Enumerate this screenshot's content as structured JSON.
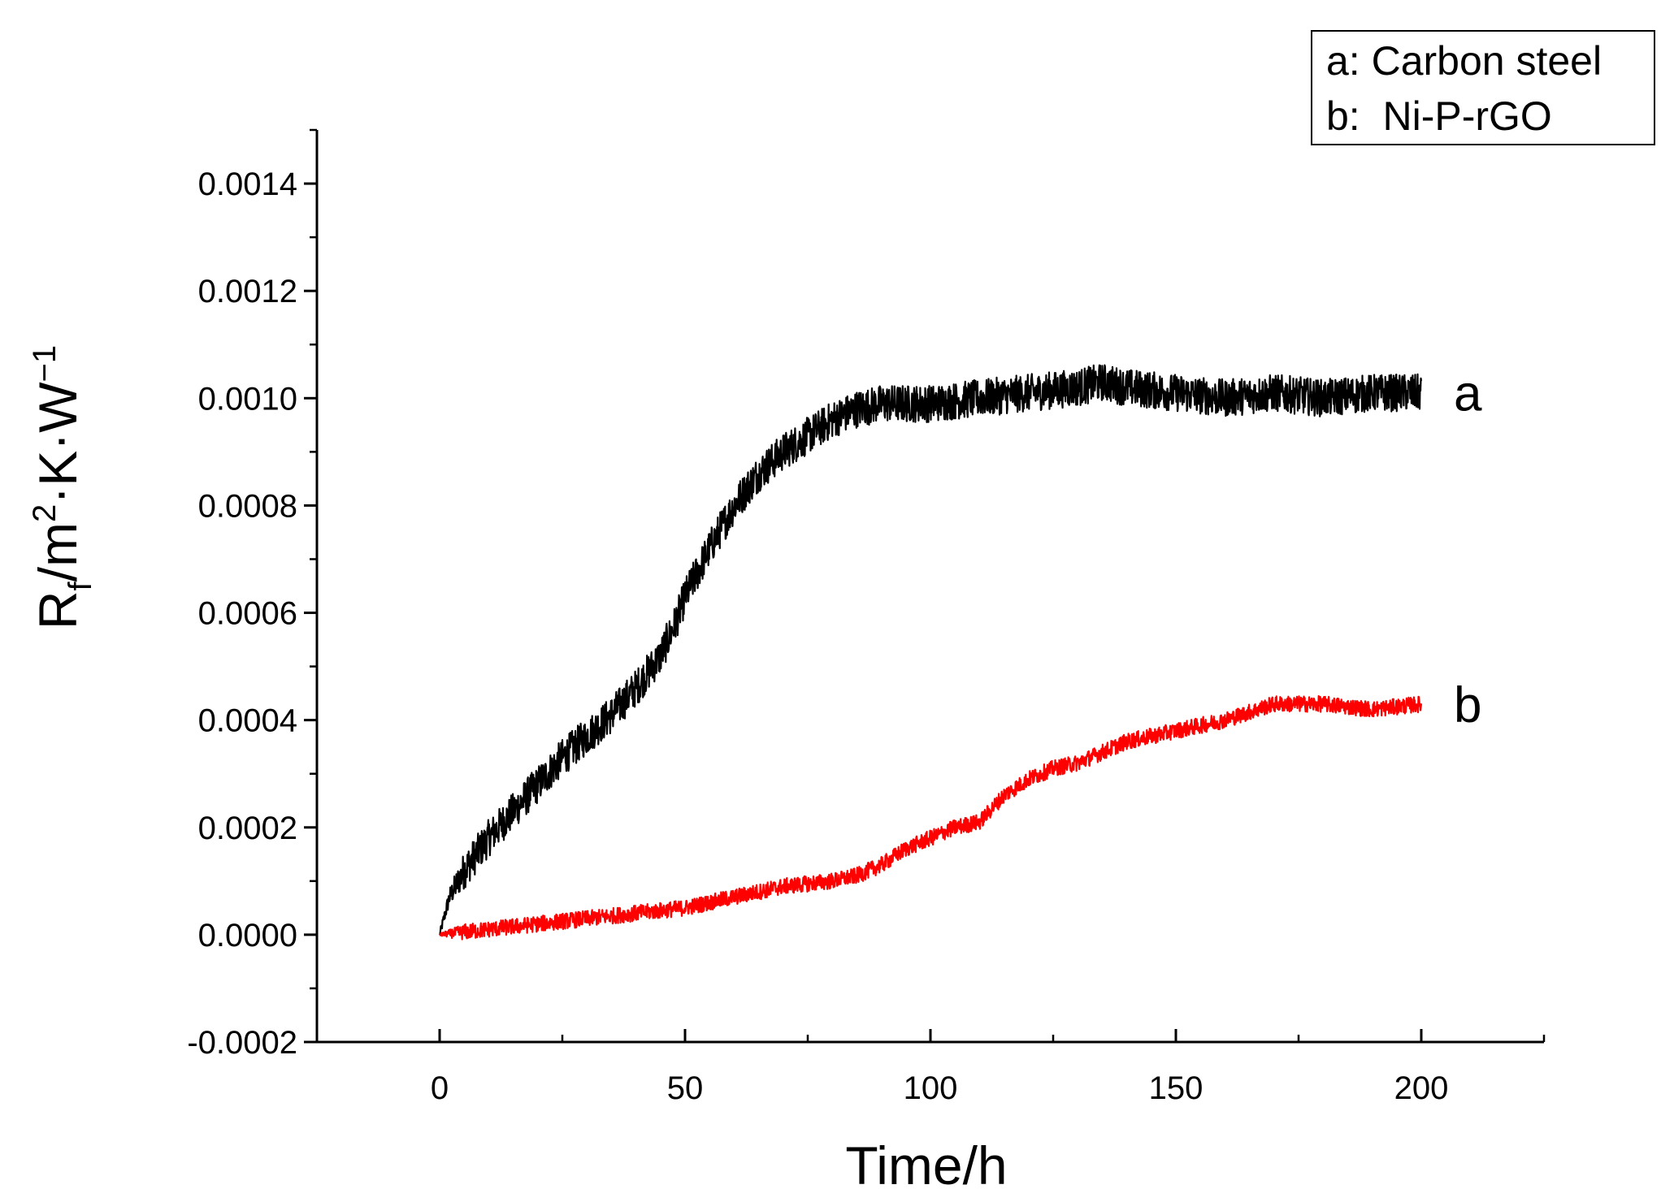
{
  "chart_data": {
    "type": "line",
    "title": "",
    "xlabel": "Time/h",
    "ylabel": {
      "base": "R",
      "sub": "f",
      "unit_a": "/m",
      "sup_a": "2",
      "unit_b": "·K·W",
      "sup_b": "−1"
    },
    "xlim": [
      -25,
      225
    ],
    "ylim": [
      -0.0002,
      0.0015
    ],
    "xticks": [
      {
        "value": 0,
        "label": "0"
      },
      {
        "value": 50,
        "label": "50"
      },
      {
        "value": 100,
        "label": "100"
      },
      {
        "value": 150,
        "label": "150"
      },
      {
        "value": 200,
        "label": "200"
      }
    ],
    "yticks": [
      {
        "value": -0.0002,
        "label": "-0.0002"
      },
      {
        "value": 0.0,
        "label": "0.0000"
      },
      {
        "value": 0.0002,
        "label": "0.0002"
      },
      {
        "value": 0.0004,
        "label": "0.0004"
      },
      {
        "value": 0.0006,
        "label": "0.0006"
      },
      {
        "value": 0.0008,
        "label": "0.0008"
      },
      {
        "value": 0.001,
        "label": "0.0010"
      },
      {
        "value": 0.0012,
        "label": "0.0012"
      },
      {
        "value": 0.0014,
        "label": "0.0014"
      }
    ],
    "grid": false,
    "legend": {
      "position": "top-right",
      "entries": [
        "a: Carbon steel",
        "b:  Ni-P-rGO"
      ]
    },
    "series": [
      {
        "name": "a",
        "label": "a",
        "description": "Carbon steel",
        "color": "#000000",
        "noise": 3.5e-05,
        "x": [
          0,
          2,
          5,
          10,
          15,
          20,
          25,
          30,
          35,
          40,
          45,
          48,
          50,
          55,
          60,
          65,
          70,
          75,
          80,
          85,
          90,
          95,
          100,
          110,
          120,
          130,
          135,
          140,
          150,
          160,
          170,
          180,
          190,
          200
        ],
        "y": [
          0.0,
          7e-05,
          0.00012,
          0.00018,
          0.00023,
          0.00028,
          0.00033,
          0.00037,
          0.00041,
          0.00046,
          0.00052,
          0.00058,
          0.00063,
          0.00072,
          0.0008,
          0.00086,
          0.0009,
          0.00093,
          0.00096,
          0.00098,
          0.00099,
          0.00099,
          0.00099,
          0.001,
          0.00101,
          0.00102,
          0.00103,
          0.00102,
          0.00101,
          0.001,
          0.00101,
          0.001,
          0.00101,
          0.00101
        ]
      },
      {
        "name": "b",
        "label": "b",
        "description": "Ni-P-rGO",
        "color": "#ff0000",
        "noise": 1.5e-05,
        "x": [
          0,
          10,
          20,
          30,
          40,
          50,
          60,
          70,
          80,
          85,
          90,
          95,
          100,
          105,
          110,
          112,
          115,
          120,
          125,
          130,
          140,
          150,
          160,
          170,
          175,
          180,
          190,
          200
        ],
        "y": [
          0.0,
          1e-05,
          2e-05,
          3e-05,
          4e-05,
          5e-05,
          7e-05,
          9e-05,
          0.0001,
          0.00011,
          0.00013,
          0.00016,
          0.00018,
          0.0002,
          0.00021,
          0.00023,
          0.00026,
          0.00029,
          0.00031,
          0.00032,
          0.00036,
          0.00038,
          0.0004,
          0.00043,
          0.00043,
          0.00043,
          0.00042,
          0.00043
        ]
      }
    ]
  }
}
